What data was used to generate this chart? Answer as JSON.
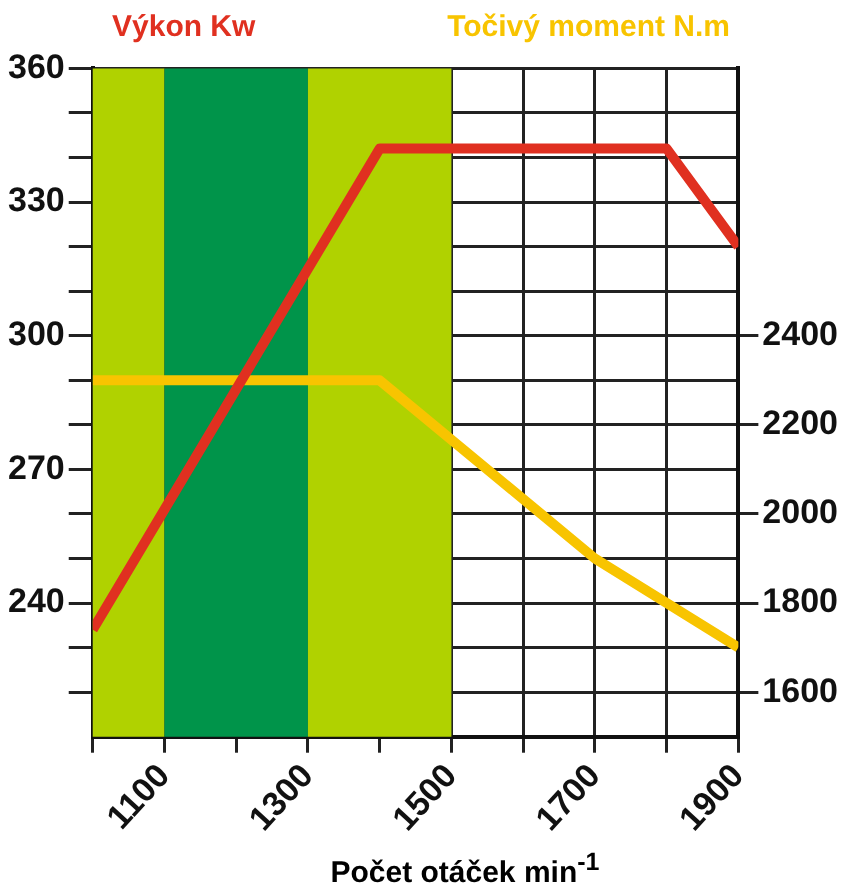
{
  "chart_data": {
    "type": "line",
    "ylabel": "Výkon Kw",
    "y2label": "Točivý moment N.m",
    "xlabel": "Počet otáček min$^{-1}$",
    "series": [
      {
        "color": "#e03020",
        "x": [
          1000,
          1400,
          1800,
          1900
        ],
        "values": [
          234,
          342,
          342,
          320
        ]
      },
      {
        "color": "#f8c400",
        "axis": "y2",
        "x": [
          1000,
          1400,
          1700,
          1900
        ],
        "values": [
          2300,
          2300,
          1900,
          1700
        ]
      }
    ],
    "xlim": [
      1000,
      1900
    ],
    "xticks": [
      {
        "value": 1000,
        "label": null
      },
      1100,
      {
        "value": 1200,
        "label": null
      },
      1300,
      {
        "value": 1400,
        "label": null
      },
      1500,
      {
        "value": 1600,
        "label": null
      },
      1700,
      {
        "value": 1800,
        "label": null
      },
      1900
    ],
    "ylim": [
      210,
      360
    ],
    "yticks": [
      {
        "value": 220,
        "label": null
      },
      {
        "value": 230,
        "label": null
      },
      240,
      {
        "value": 250,
        "label": null
      },
      {
        "value": 260,
        "label": null
      },
      270,
      {
        "value": 280,
        "label": null
      },
      {
        "value": 290,
        "label": null
      },
      300,
      {
        "value": 310,
        "label": null
      },
      {
        "value": 320,
        "label": null
      },
      330,
      {
        "value": 340,
        "label": null
      },
      {
        "value": 350,
        "label": null
      },
      360
    ],
    "y2lim": [
      1500,
      3000
    ],
    "y2ticks": [
      1600,
      1800,
      2000,
      2200,
      2400
    ],
    "bands": [
      {
        "axis": "x",
        "from": 1000,
        "to": 1100,
        "color": "#b0d200"
      },
      {
        "axis": "x",
        "from": 1100,
        "to": 1300,
        "color": "#00944a"
      },
      {
        "axis": "x",
        "from": 1300,
        "to": 1500,
        "color": "#b0d200"
      }
    ],
    "grid": true,
    "legend": false,
    "marker": "none",
    "line_style": "solid"
  }
}
